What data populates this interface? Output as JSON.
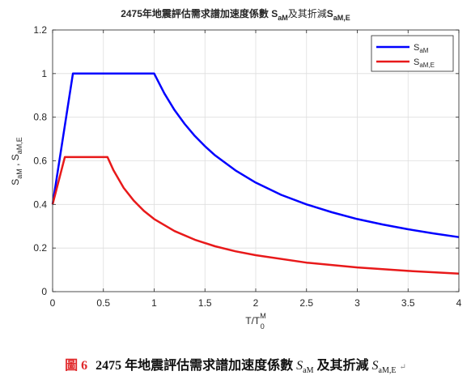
{
  "chart_data": {
    "type": "line",
    "title_main": "2475年地震評估需求譜加速度係數 ",
    "title_s1": "S",
    "title_s1_sub": "aM",
    "title_mid": "及其折減",
    "title_s2": "S",
    "title_s2_sub": "aM,E",
    "xlabel_base": "T/T",
    "xlabel_sup": "M",
    "xlabel_sub": "0",
    "ylabel_a": "S",
    "ylabel_a_sub": "aM",
    "ylabel_sep": " , ",
    "ylabel_b": "S",
    "ylabel_b_sub": "aM,E",
    "xlim": [
      0,
      4
    ],
    "ylim": [
      0,
      1.2
    ],
    "xticks": [
      0,
      0.5,
      1,
      1.5,
      2,
      2.5,
      3,
      3.5,
      4
    ],
    "xtick_labels": [
      "0",
      "0.5",
      "1",
      "1.5",
      "2",
      "2.5",
      "3",
      "3.5",
      "4"
    ],
    "yticks": [
      0,
      0.2,
      0.4,
      0.6,
      0.8,
      1,
      1.2
    ],
    "ytick_labels": [
      "0",
      "0.2",
      "0.4",
      "0.6",
      "0.8",
      "1",
      "1.2"
    ],
    "grid": true,
    "legend_position": "top-right",
    "series": [
      {
        "name": "S",
        "name_sub": "aM",
        "color": "#0000ff",
        "x": [
          0,
          0.2,
          1,
          1.1,
          1.2,
          1.3,
          1.4,
          1.5,
          1.6,
          1.8,
          2,
          2.25,
          2.5,
          2.75,
          3,
          3.25,
          3.5,
          3.75,
          4
        ],
        "y": [
          0.4,
          1,
          1,
          0.909,
          0.833,
          0.769,
          0.714,
          0.667,
          0.625,
          0.556,
          0.5,
          0.444,
          0.4,
          0.364,
          0.333,
          0.308,
          0.286,
          0.267,
          0.25
        ]
      },
      {
        "name": "S",
        "name_sub": "aM,E",
        "color": "#e8191a",
        "x": [
          0,
          0.12,
          0.54,
          0.6,
          0.7,
          0.8,
          0.9,
          1,
          1.2,
          1.4,
          1.6,
          1.8,
          2,
          2.5,
          3,
          3.5,
          4
        ],
        "y": [
          0.4,
          0.617,
          0.617,
          0.556,
          0.476,
          0.417,
          0.37,
          0.333,
          0.278,
          0.238,
          0.208,
          0.185,
          0.167,
          0.133,
          0.111,
          0.095,
          0.083
        ]
      }
    ]
  },
  "caption": {
    "label": "圖 6",
    "text_a": "2475 年地震評估需求譜加速度係數 ",
    "sym_a": "S",
    "sym_a_sub": "aM",
    "text_b": " 及其折減 ",
    "sym_b": "S",
    "sym_b_sub": "aM,E",
    "return_mark": "↵"
  }
}
